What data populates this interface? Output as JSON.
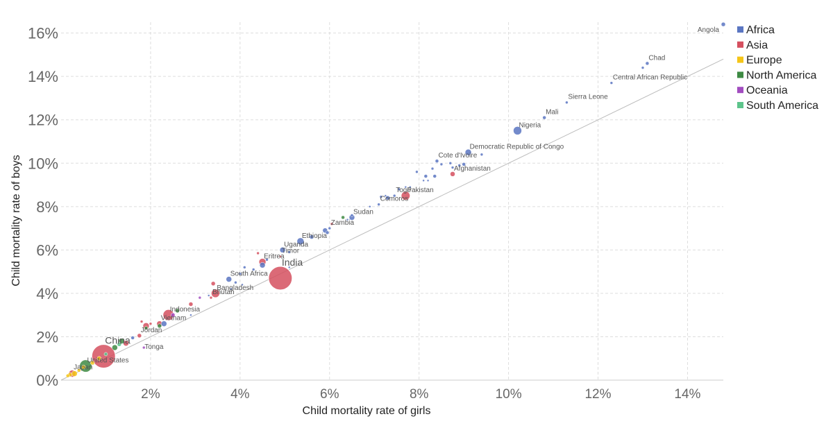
{
  "chart_data": {
    "type": "scatter",
    "xlabel": "Child mortality rate of girls",
    "ylabel": "Child mortality rate of boys",
    "xlim": [
      0,
      14.8
    ],
    "ylim": [
      0,
      16.5
    ],
    "x_ticks": [
      2,
      4,
      6,
      8,
      10,
      12,
      14
    ],
    "y_ticks": [
      0,
      2,
      4,
      6,
      8,
      10,
      12,
      14,
      16
    ],
    "tick_format": "percent",
    "grid": true,
    "legend_position": "top-right",
    "reference_line": {
      "x": [
        0,
        14.8
      ],
      "y": [
        0,
        14.8
      ]
    },
    "legend": [
      {
        "name": "Africa",
        "color": "#5b76c2"
      },
      {
        "name": "Asia",
        "color": "#d5505f"
      },
      {
        "name": "Europe",
        "color": "#f5c518"
      },
      {
        "name": "North America",
        "color": "#3e8a43"
      },
      {
        "name": "Oceania",
        "color": "#a24dc0"
      },
      {
        "name": "South America",
        "color": "#5dc48b"
      }
    ],
    "points": [
      {
        "label": "Angola",
        "x": 14.8,
        "y": 16.4,
        "region": "Africa",
        "r": 3
      },
      {
        "label": "Chad",
        "x": 13.1,
        "y": 14.6,
        "region": "Africa",
        "r": 2.5
      },
      {
        "label": "",
        "x": 13.0,
        "y": 14.4,
        "region": "Africa",
        "r": 2
      },
      {
        "label": "Central African Republic",
        "x": 12.3,
        "y": 13.7,
        "region": "Africa",
        "r": 2
      },
      {
        "label": "Sierra Leone",
        "x": 11.3,
        "y": 12.8,
        "region": "Africa",
        "r": 2
      },
      {
        "label": "Mali",
        "x": 10.8,
        "y": 12.1,
        "region": "Africa",
        "r": 2.5
      },
      {
        "label": "Nigeria",
        "x": 10.2,
        "y": 11.5,
        "region": "Africa",
        "r": 6
      },
      {
        "label": "Democratic Republic of Congo",
        "x": 9.1,
        "y": 10.5,
        "region": "Africa",
        "r": 4.5
      },
      {
        "label": "",
        "x": 9.4,
        "y": 10.4,
        "region": "Africa",
        "r": 2
      },
      {
        "label": "Cote d'Ivoire",
        "x": 8.4,
        "y": 10.1,
        "region": "Africa",
        "r": 2.5
      },
      {
        "label": "",
        "x": 8.5,
        "y": 9.95,
        "region": "Africa",
        "r": 2
      },
      {
        "label": "",
        "x": 8.7,
        "y": 10.0,
        "region": "Africa",
        "r": 2
      },
      {
        "label": "",
        "x": 8.9,
        "y": 9.9,
        "region": "Africa",
        "r": 2
      },
      {
        "label": "",
        "x": 9.0,
        "y": 9.95,
        "region": "Africa",
        "r": 2.5
      },
      {
        "label": "",
        "x": 7.95,
        "y": 9.6,
        "region": "Africa",
        "r": 2
      },
      {
        "label": "",
        "x": 8.3,
        "y": 9.75,
        "region": "Africa",
        "r": 2
      },
      {
        "label": "",
        "x": 8.75,
        "y": 9.8,
        "region": "Africa",
        "r": 2
      },
      {
        "label": "Afghanistan",
        "x": 8.75,
        "y": 9.5,
        "region": "Asia",
        "r": 3.5
      },
      {
        "label": "",
        "x": 8.35,
        "y": 9.4,
        "region": "Africa",
        "r": 2.5
      },
      {
        "label": "",
        "x": 8.15,
        "y": 9.4,
        "region": "Africa",
        "r": 2.5
      },
      {
        "label": "",
        "x": 8.1,
        "y": 9.2,
        "region": "Africa",
        "r": 1.5
      },
      {
        "label": "",
        "x": 8.2,
        "y": 9.2,
        "region": "Africa",
        "r": 1.5
      },
      {
        "label": "Pakistan",
        "x": 7.7,
        "y": 8.5,
        "region": "Asia",
        "r": 6.5
      },
      {
        "label": "",
        "x": 7.7,
        "y": 8.9,
        "region": "Africa",
        "r": 1.5
      },
      {
        "label": "",
        "x": 7.8,
        "y": 8.9,
        "region": "Africa",
        "r": 1.5
      },
      {
        "label": "",
        "x": 7.55,
        "y": 8.8,
        "region": "Africa",
        "r": 2
      },
      {
        "label": "Togo",
        "x": 7.45,
        "y": 8.5,
        "region": "Africa",
        "r": 2
      },
      {
        "label": "",
        "x": 7.3,
        "y": 8.4,
        "region": "Africa",
        "r": 3
      },
      {
        "label": "",
        "x": 7.25,
        "y": 8.5,
        "region": "Africa",
        "r": 1.5
      },
      {
        "label": "",
        "x": 7.15,
        "y": 8.45,
        "region": "Africa",
        "r": 2
      },
      {
        "label": "Comoros",
        "x": 7.1,
        "y": 8.1,
        "region": "Africa",
        "r": 2
      },
      {
        "label": "",
        "x": 6.9,
        "y": 8.0,
        "region": "Africa",
        "r": 1.5
      },
      {
        "label": "Sudan",
        "x": 6.5,
        "y": 7.5,
        "region": "Africa",
        "r": 4
      },
      {
        "label": "",
        "x": 6.3,
        "y": 7.5,
        "region": "North America",
        "r": 2.5
      },
      {
        "label": "",
        "x": 6.4,
        "y": 7.4,
        "region": "Africa",
        "r": 1.5
      },
      {
        "label": "",
        "x": 6.5,
        "y": 7.6,
        "region": "Africa",
        "r": 2
      },
      {
        "label": "Zambia",
        "x": 6.0,
        "y": 7.0,
        "region": "Africa",
        "r": 2
      },
      {
        "label": "",
        "x": 6.05,
        "y": 7.2,
        "region": "Asia",
        "r": 2
      },
      {
        "label": "",
        "x": 5.9,
        "y": 6.9,
        "region": "Africa",
        "r": 3.5
      },
      {
        "label": "",
        "x": 5.95,
        "y": 6.8,
        "region": "Africa",
        "r": 2.5
      },
      {
        "label": "Ethiopia",
        "x": 5.35,
        "y": 6.4,
        "region": "Africa",
        "r": 5
      },
      {
        "label": "",
        "x": 5.6,
        "y": 6.6,
        "region": "Africa",
        "r": 3
      },
      {
        "label": "Uganda",
        "x": 4.95,
        "y": 6.0,
        "region": "Africa",
        "r": 4
      },
      {
        "label": "",
        "x": 5.1,
        "y": 5.9,
        "region": "Africa",
        "r": 2
      },
      {
        "label": "Timor",
        "x": 4.9,
        "y": 5.7,
        "region": "Asia",
        "r": 1.5
      },
      {
        "label": "",
        "x": 4.4,
        "y": 5.85,
        "region": "Asia",
        "r": 2
      },
      {
        "label": "India",
        "x": 4.9,
        "y": 4.7,
        "region": "Asia",
        "r": 17
      },
      {
        "label": "",
        "x": 5.1,
        "y": 5.2,
        "region": "Africa",
        "r": 1.5
      },
      {
        "label": "Eritrea",
        "x": 4.5,
        "y": 5.45,
        "region": "Asia",
        "r": 5
      },
      {
        "label": "",
        "x": 4.5,
        "y": 5.3,
        "region": "Africa",
        "r": 4
      },
      {
        "label": "",
        "x": 4.6,
        "y": 5.55,
        "region": "Africa",
        "r": 2
      },
      {
        "label": "",
        "x": 4.1,
        "y": 5.2,
        "region": "Africa",
        "r": 2
      },
      {
        "label": "",
        "x": 4.3,
        "y": 5.1,
        "region": "Africa",
        "r": 2
      },
      {
        "label": "South Africa",
        "x": 3.75,
        "y": 4.65,
        "region": "Africa",
        "r": 4
      },
      {
        "label": "",
        "x": 4.0,
        "y": 4.9,
        "region": "Africa",
        "r": 2
      },
      {
        "label": "",
        "x": 3.9,
        "y": 4.5,
        "region": "Africa",
        "r": 2
      },
      {
        "label": "Bangladesh",
        "x": 3.45,
        "y": 4.0,
        "region": "Asia",
        "r": 6
      },
      {
        "label": "",
        "x": 3.4,
        "y": 4.45,
        "region": "Asia",
        "r": 3
      },
      {
        "label": "",
        "x": 3.8,
        "y": 4.2,
        "region": "Africa",
        "r": 1.5
      },
      {
        "label": "",
        "x": 4.05,
        "y": 4.4,
        "region": "Africa",
        "r": 1.5
      },
      {
        "label": "Bhutan",
        "x": 3.35,
        "y": 3.8,
        "region": "Asia",
        "r": 2
      },
      {
        "label": "",
        "x": 3.3,
        "y": 3.9,
        "region": "Africa",
        "r": 1.5
      },
      {
        "label": "Indonesia",
        "x": 2.4,
        "y": 3.0,
        "region": "Asia",
        "r": 8
      },
      {
        "label": "",
        "x": 2.9,
        "y": 3.5,
        "region": "Asia",
        "r": 3
      },
      {
        "label": "",
        "x": 3.1,
        "y": 3.8,
        "region": "Oceania",
        "r": 2
      },
      {
        "label": "",
        "x": 2.6,
        "y": 3.2,
        "region": "North America",
        "r": 3
      },
      {
        "label": "",
        "x": 2.5,
        "y": 3.0,
        "region": "Oceania",
        "r": 3
      },
      {
        "label": "",
        "x": 2.9,
        "y": 3.0,
        "region": "Africa",
        "r": 1.5
      },
      {
        "label": "Vietnam",
        "x": 2.2,
        "y": 2.6,
        "region": "Asia",
        "r": 4
      },
      {
        "label": "",
        "x": 2.0,
        "y": 2.6,
        "region": "Asia",
        "r": 2
      },
      {
        "label": "",
        "x": 1.8,
        "y": 2.7,
        "region": "Asia",
        "r": 2
      },
      {
        "label": "",
        "x": 2.3,
        "y": 2.6,
        "region": "Africa",
        "r": 4
      },
      {
        "label": "",
        "x": 2.2,
        "y": 2.5,
        "region": "North America",
        "r": 3
      },
      {
        "label": "",
        "x": 1.9,
        "y": 2.5,
        "region": "Asia",
        "r": 4.5
      },
      {
        "label": "",
        "x": 1.9,
        "y": 2.4,
        "region": "North America",
        "r": 2.5
      },
      {
        "label": "Jordan",
        "x": 1.75,
        "y": 2.05,
        "region": "Asia",
        "r": 3
      },
      {
        "label": "",
        "x": 1.6,
        "y": 1.95,
        "region": "Africa",
        "r": 2.5
      },
      {
        "label": "Tonga",
        "x": 1.85,
        "y": 1.5,
        "region": "Oceania",
        "r": 2
      },
      {
        "label": "",
        "x": 1.45,
        "y": 1.7,
        "region": "Asia",
        "r": 4
      },
      {
        "label": "",
        "x": 1.35,
        "y": 1.8,
        "region": "North America",
        "r": 4
      },
      {
        "label": "",
        "x": 1.3,
        "y": 1.65,
        "region": "South America",
        "r": 3
      },
      {
        "label": "",
        "x": 1.2,
        "y": 1.5,
        "region": "North America",
        "r": 4
      },
      {
        "label": "China",
        "x": 0.95,
        "y": 1.1,
        "region": "Asia",
        "r": 17
      },
      {
        "label": "United States",
        "x": 0.55,
        "y": 0.65,
        "region": "North America",
        "r": 9
      },
      {
        "label": "",
        "x": 0.7,
        "y": 0.8,
        "region": "Europe",
        "r": 3
      },
      {
        "label": "",
        "x": 0.5,
        "y": 0.6,
        "region": "Europe",
        "r": 3
      },
      {
        "label": "",
        "x": 0.4,
        "y": 0.45,
        "region": "Europe",
        "r": 2.5
      },
      {
        "label": "",
        "x": 0.85,
        "y": 1.0,
        "region": "Europe",
        "r": 3
      },
      {
        "label": "",
        "x": 1.0,
        "y": 1.2,
        "region": "South America",
        "r": 2.5
      },
      {
        "label": "Japan",
        "x": 0.25,
        "y": 0.3,
        "region": "Asia",
        "r": 5
      },
      {
        "label": "",
        "x": 0.3,
        "y": 0.3,
        "region": "Europe",
        "r": 4
      },
      {
        "label": "",
        "x": 0.2,
        "y": 0.25,
        "region": "Europe",
        "r": 3
      },
      {
        "label": "",
        "x": 0.15,
        "y": 0.2,
        "region": "Europe",
        "r": 2.5
      }
    ]
  }
}
